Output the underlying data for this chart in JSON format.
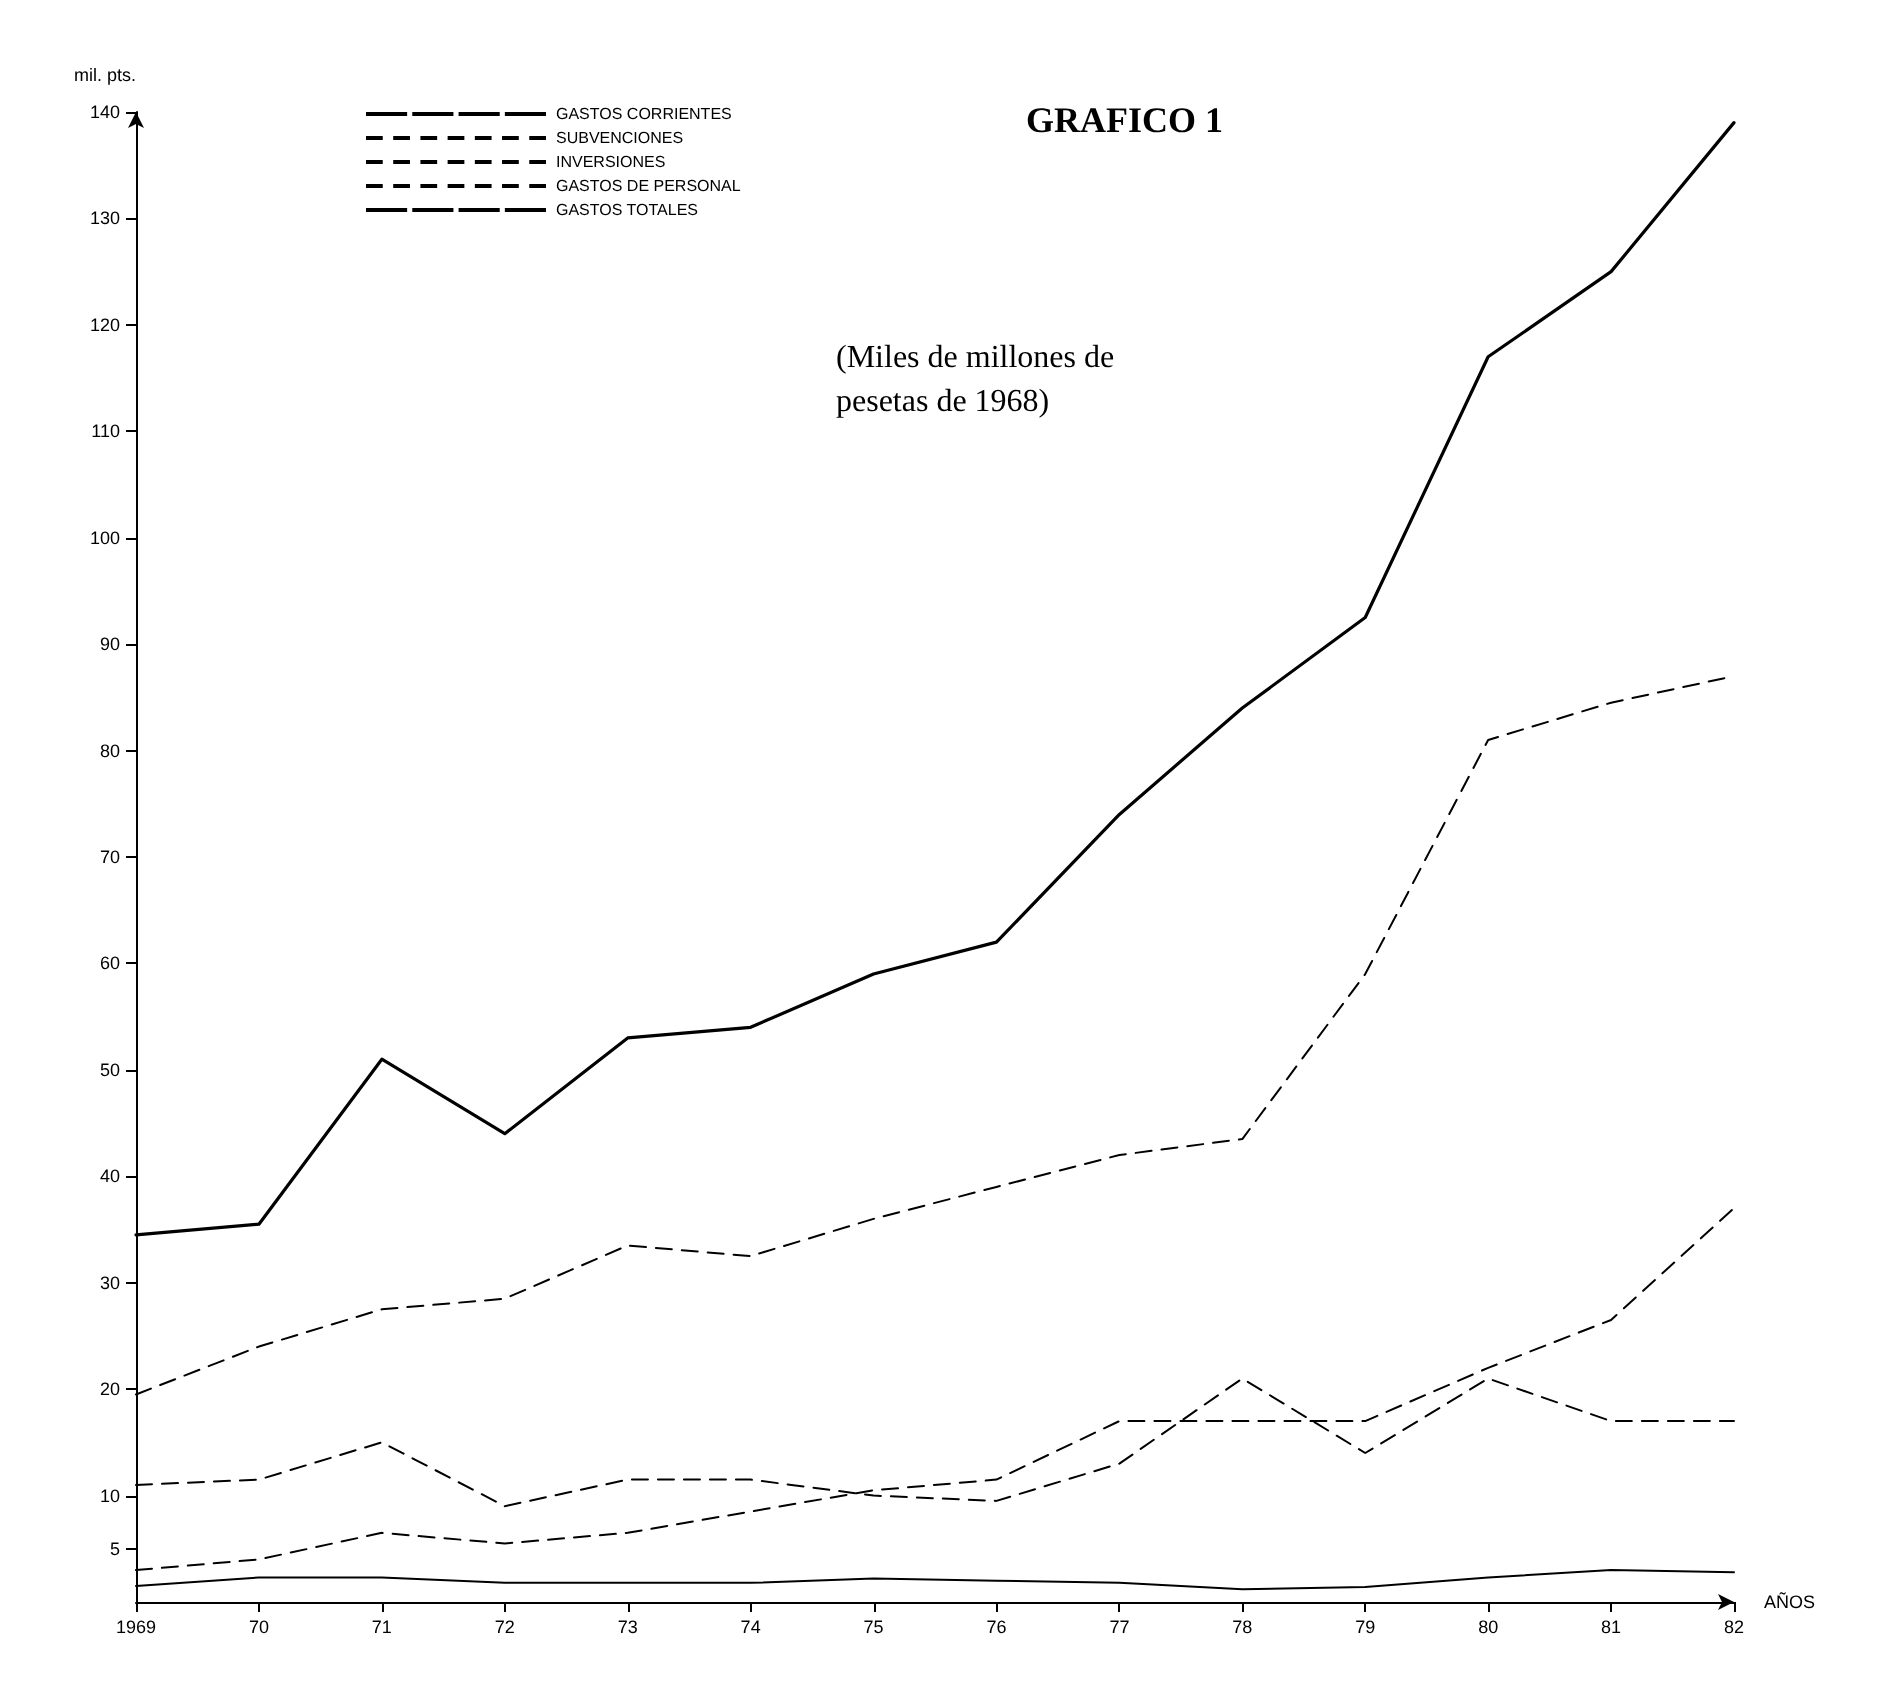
{
  "chart_data": {
    "type": "line",
    "title": "GRAFICO 1",
    "xlabel": "AÑOS",
    "ylabel": "mil. pts.",
    "annotations": [
      "(Miles de millones de pesetas de 1968)"
    ],
    "categories": [
      "1969",
      "70",
      "71",
      "72",
      "73",
      "74",
      "75",
      "76",
      "77",
      "78",
      "79",
      "80",
      "81",
      "82"
    ],
    "series": [
      {
        "name": "GASTOS CORRIENTES",
        "color": "#000000",
        "line_style": "solid",
        "values": [
          1.5,
          2.3,
          2.3,
          1.8,
          1.8,
          1.8,
          2.2,
          2.0,
          1.8,
          1.2,
          1.4,
          2.3,
          3.0,
          2.8
        ]
      },
      {
        "name": "SUBVENCIONES",
        "color": "#000000",
        "line_style": "dashed",
        "values": [
          3,
          4,
          6.5,
          5.5,
          6.5,
          8.5,
          10.5,
          11.5,
          17,
          17,
          17,
          22,
          26.5,
          37
        ]
      },
      {
        "name": "INVERSIONES",
        "color": "#000000",
        "line_style": "dashed",
        "values": [
          11,
          11.5,
          15,
          9,
          11.5,
          11.5,
          10,
          9.5,
          13,
          21,
          14,
          21,
          17,
          17
        ]
      },
      {
        "name": "GASTOS DE PERSONAL",
        "color": "#000000",
        "line_style": "dashed",
        "values": [
          19.5,
          24,
          27.5,
          28.5,
          33.5,
          32.5,
          36,
          39,
          42,
          43.5,
          59,
          81,
          84.5,
          87
        ]
      },
      {
        "name": "GASTOS TOTALES",
        "color": "#000000",
        "line_style": "solid",
        "values": [
          34.5,
          35.5,
          51,
          44,
          53,
          54,
          59,
          62,
          74,
          84,
          92.5,
          117,
          125,
          139
        ]
      }
    ],
    "ylim": [
      0,
      140
    ],
    "yticks": [
      5,
      10,
      20,
      30,
      40,
      50,
      60,
      70,
      80,
      90,
      100,
      110,
      120,
      130,
      140
    ],
    "grid": false,
    "legend": "top left",
    "marker": "none"
  }
}
